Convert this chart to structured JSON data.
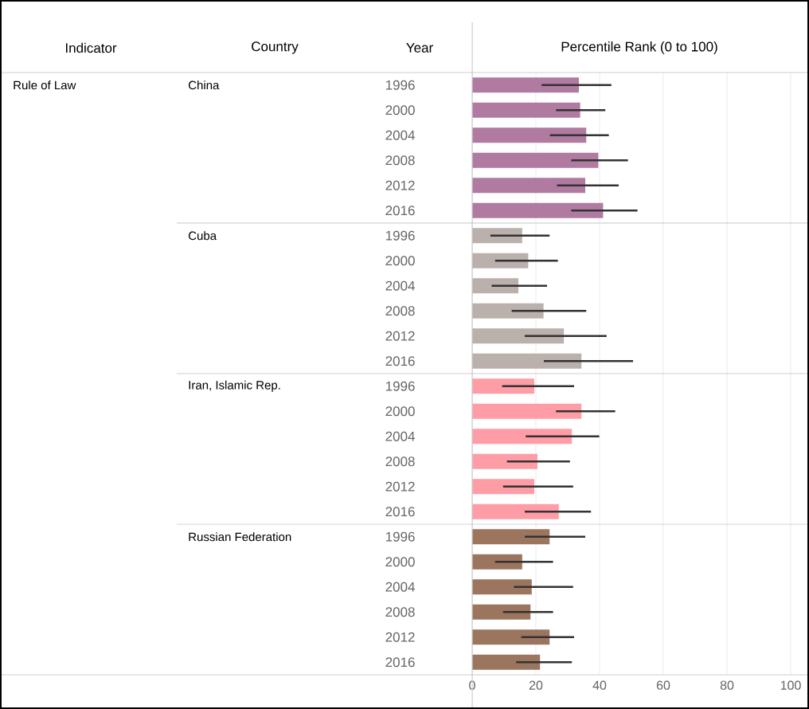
{
  "chart_data": {
    "type": "bar",
    "orientation": "horizontal",
    "xlabel": "Percentile Rank (0 to 100)",
    "ylabel": "Year",
    "legend_title": "Country",
    "annotations": [
      "Indicator",
      "Rule of Law",
      "China",
      "Cuba",
      "Iran, Islamic Rep.",
      "Russian Federation"
    ],
    "categories": [
      "1996",
      "2000",
      "2004",
      "2008",
      "2012",
      "2016",
      "1996",
      "2000",
      "2004",
      "2008",
      "2012",
      "2016",
      "1996",
      "2000",
      "2004",
      "2008",
      "2012",
      "2016",
      "1996",
      "2000",
      "2004",
      "2008",
      "2012",
      "2016"
    ],
    "series": [
      {
        "color": "#b07aa1",
        "values": [
          33.5,
          33.9,
          35.8,
          39.6,
          35.5,
          41.1,
          null,
          null,
          null,
          null,
          null,
          null,
          null,
          null,
          null,
          null,
          null,
          null,
          null,
          null,
          null,
          null,
          null,
          null
        ],
        "errors": [
          [
            21.8,
            43.7
          ],
          [
            26.3,
            41.8
          ],
          [
            24.4,
            42.9
          ],
          [
            31.1,
            48.9
          ],
          [
            26.6,
            46.0
          ],
          [
            31.1,
            51.9
          ],
          null,
          null,
          null,
          null,
          null,
          null,
          null,
          null,
          null,
          null,
          null,
          null,
          null,
          null,
          null,
          null,
          null,
          null
        ]
      },
      {
        "color": "#bab0ac",
        "values": [
          null,
          null,
          null,
          null,
          null,
          null,
          15.7,
          17.6,
          14.5,
          22.4,
          28.8,
          34.3,
          null,
          null,
          null,
          null,
          null,
          null,
          null,
          null,
          null,
          null,
          null,
          null
        ],
        "errors": [
          null,
          null,
          null,
          null,
          null,
          null,
          [
            5.7,
            24.3
          ],
          [
            7.2,
            26.9
          ],
          [
            6.1,
            23.5
          ],
          [
            12.4,
            35.8
          ],
          [
            16.5,
            42.2
          ],
          [
            22.5,
            50.5
          ],
          null,
          null,
          null,
          null,
          null,
          null,
          null,
          null,
          null,
          null,
          null,
          null
        ]
      },
      {
        "color": "#ff9da7",
        "values": [
          null,
          null,
          null,
          null,
          null,
          null,
          null,
          null,
          null,
          null,
          null,
          null,
          19.5,
          34.3,
          31.3,
          20.5,
          19.5,
          27.2,
          null,
          null,
          null,
          null,
          null,
          null
        ],
        "errors": [
          null,
          null,
          null,
          null,
          null,
          null,
          null,
          null,
          null,
          null,
          null,
          null,
          [
            9.4,
            32.0
          ],
          [
            26.3,
            44.9
          ],
          [
            16.8,
            39.9
          ],
          [
            10.9,
            30.7
          ],
          [
            9.7,
            31.7
          ],
          [
            16.5,
            37.3
          ],
          null,
          null,
          null,
          null,
          null,
          null
        ]
      },
      {
        "color": "#9c755f",
        "values": [
          null,
          null,
          null,
          null,
          null,
          null,
          null,
          null,
          null,
          null,
          null,
          null,
          null,
          null,
          null,
          null,
          null,
          null,
          24.3,
          15.7,
          18.7,
          18.3,
          24.3,
          21.3
        ],
        "errors": [
          null,
          null,
          null,
          null,
          null,
          null,
          null,
          null,
          null,
          null,
          null,
          null,
          null,
          null,
          null,
          null,
          null,
          null,
          [
            16.5,
            35.5
          ],
          [
            7.2,
            25.4
          ],
          [
            13.1,
            31.7
          ],
          [
            9.7,
            25.4
          ],
          [
            15.4,
            32.0
          ],
          [
            13.8,
            31.3
          ]
        ]
      }
    ],
    "xlim": [
      0,
      100
    ],
    "xticks": [
      0,
      20,
      40,
      60,
      80,
      100
    ],
    "grid": "x"
  }
}
